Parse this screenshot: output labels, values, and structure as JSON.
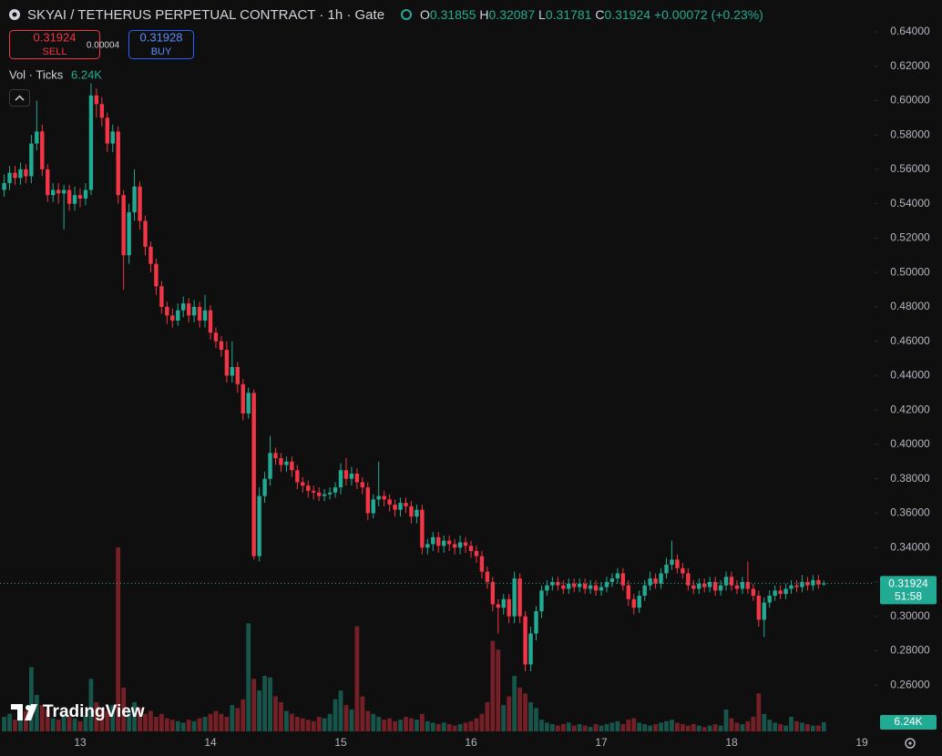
{
  "header": {
    "title": "SKYAI / TETHERUS PERPETUAL CONTRACT · 1h · Gate",
    "ohlc": [
      {
        "label": "O",
        "value": 0.31855
      },
      {
        "label": "H",
        "value": 0.32087
      },
      {
        "label": "L",
        "value": 0.31781
      },
      {
        "label": "C",
        "value": 0.31924
      }
    ],
    "change": "+0.00072 (+0.23%)"
  },
  "trade": {
    "sell_price": 0.31924,
    "sell_label": "SELL",
    "spread": 4e-05,
    "buy_price": 0.31928,
    "buy_label": "BUY"
  },
  "volume_legend": {
    "label": "Vol · Ticks",
    "value": "6.24K"
  },
  "brand": "TradingView",
  "chart_data": {
    "type": "candlestick",
    "up_color": "#22ab94",
    "down_color": "#f23645",
    "categories": [
      null,
      null,
      null,
      null,
      null,
      null,
      null,
      null,
      null,
      null,
      null,
      null,
      null,
      null,
      "13",
      null,
      null,
      null,
      null,
      null,
      null,
      null,
      null,
      null,
      null,
      null,
      null,
      null,
      null,
      null,
      null,
      null,
      null,
      null,
      null,
      null,
      null,
      null,
      "14",
      null,
      null,
      null,
      null,
      null,
      null,
      null,
      null,
      null,
      null,
      null,
      null,
      null,
      null,
      null,
      null,
      null,
      null,
      null,
      null,
      null,
      null,
      null,
      "15",
      null,
      null,
      null,
      null,
      null,
      null,
      null,
      null,
      null,
      null,
      null,
      null,
      null,
      null,
      null,
      null,
      null,
      null,
      null,
      null,
      null,
      null,
      null,
      "16",
      null,
      null,
      null,
      null,
      null,
      null,
      null,
      null,
      null,
      null,
      null,
      null,
      null,
      null,
      null,
      null,
      null,
      null,
      null,
      null,
      null,
      null,
      null,
      "17",
      null,
      null,
      null,
      null,
      null,
      null,
      null,
      null,
      null,
      null,
      null,
      null,
      null,
      null,
      null,
      null,
      null,
      null,
      null,
      null,
      null,
      null,
      null,
      "18",
      null,
      null,
      null,
      null,
      null,
      null,
      null,
      null,
      null,
      null,
      null,
      null,
      null,
      null,
      null,
      null,
      null,
      null,
      null,
      null,
      null,
      null,
      null,
      "19"
    ],
    "open": [
      0.548,
      0.552,
      0.558,
      0.555,
      0.56,
      0.556,
      0.575,
      0.582,
      0.56,
      0.545,
      0.548,
      0.546,
      0.548,
      0.54,
      0.545,
      0.543,
      0.548,
      0.603,
      0.598,
      0.59,
      0.575,
      0.582,
      0.545,
      0.51,
      0.535,
      0.55,
      0.53,
      0.515,
      0.505,
      0.492,
      0.48,
      0.475,
      0.472,
      0.478,
      0.482,
      0.475,
      0.48,
      0.472,
      0.478,
      0.465,
      0.46,
      0.455,
      0.44,
      0.445,
      0.435,
      0.418,
      0.43,
      0.335,
      0.37,
      0.38,
      0.395,
      0.392,
      0.388,
      0.39,
      0.385,
      0.378,
      0.376,
      0.373,
      0.372,
      0.37,
      0.371,
      0.372,
      0.375,
      0.385,
      0.38,
      0.383,
      0.378,
      0.375,
      0.36,
      0.368,
      0.37,
      0.368,
      0.365,
      0.362,
      0.366,
      0.364,
      0.358,
      0.362,
      0.34,
      0.342,
      0.346,
      0.341,
      0.344,
      0.342,
      0.34,
      0.343,
      0.341,
      0.338,
      0.335,
      0.326,
      0.32,
      0.307,
      0.305,
      0.31,
      0.3,
      0.322,
      0.3,
      0.272,
      0.29,
      0.303,
      0.315,
      0.318,
      0.32,
      0.318,
      0.316,
      0.319,
      0.317,
      0.319,
      0.316,
      0.318,
      0.315,
      0.317,
      0.32,
      0.322,
      0.325,
      0.318,
      0.31,
      0.305,
      0.312,
      0.318,
      0.322,
      0.319,
      0.325,
      0.33,
      0.333,
      0.328,
      0.325,
      0.318,
      0.316,
      0.319,
      0.317,
      0.32,
      0.315,
      0.318,
      0.323,
      0.318,
      0.316,
      0.32,
      0.316,
      0.312,
      0.298,
      0.308,
      0.312,
      0.315,
      0.313,
      0.316,
      0.318,
      0.317,
      0.32,
      0.318,
      0.321,
      0.31855,
      null,
      null,
      null,
      null,
      null,
      null,
      null
    ],
    "high": [
      0.557,
      0.562,
      0.562,
      0.564,
      0.563,
      0.58,
      0.6,
      0.586,
      0.563,
      0.552,
      0.552,
      0.551,
      0.551,
      0.55,
      0.549,
      0.552,
      0.61,
      0.607,
      0.602,
      0.593,
      0.586,
      0.585,
      0.548,
      0.54,
      0.56,
      0.553,
      0.533,
      0.518,
      0.508,
      0.495,
      0.483,
      0.479,
      0.482,
      0.486,
      0.485,
      0.484,
      0.483,
      0.487,
      0.481,
      0.468,
      0.463,
      0.46,
      0.46,
      0.448,
      0.438,
      0.433,
      0.432,
      0.375,
      0.384,
      0.405,
      0.398,
      0.395,
      0.393,
      0.393,
      0.388,
      0.381,
      0.379,
      0.376,
      0.375,
      0.374,
      0.375,
      0.378,
      0.389,
      0.392,
      0.387,
      0.386,
      0.381,
      0.378,
      0.371,
      0.39,
      0.373,
      0.371,
      0.368,
      0.369,
      0.369,
      0.367,
      0.365,
      0.365,
      0.345,
      0.349,
      0.349,
      0.347,
      0.347,
      0.345,
      0.347,
      0.346,
      0.344,
      0.341,
      0.338,
      0.329,
      0.323,
      0.31,
      0.313,
      0.313,
      0.326,
      0.325,
      0.303,
      0.294,
      0.306,
      0.318,
      0.321,
      0.323,
      0.323,
      0.321,
      0.322,
      0.322,
      0.322,
      0.322,
      0.321,
      0.321,
      0.32,
      0.323,
      0.325,
      0.328,
      0.328,
      0.321,
      0.313,
      0.315,
      0.321,
      0.326,
      0.325,
      0.328,
      0.334,
      0.344,
      0.336,
      0.331,
      0.328,
      0.321,
      0.322,
      0.322,
      0.323,
      0.323,
      0.321,
      0.326,
      0.326,
      0.321,
      0.323,
      0.332,
      0.319,
      0.315,
      0.311,
      0.315,
      0.318,
      0.318,
      0.319,
      0.321,
      0.321,
      0.324,
      0.323,
      0.324,
      0.324,
      0.32087,
      null,
      null,
      null,
      null,
      null,
      null,
      null
    ],
    "low": [
      0.544,
      0.548,
      0.551,
      0.551,
      0.552,
      0.552,
      0.571,
      0.556,
      0.541,
      0.541,
      0.54,
      0.525,
      0.536,
      0.536,
      0.538,
      0.539,
      0.545,
      0.59,
      0.585,
      0.57,
      0.57,
      0.54,
      0.49,
      0.505,
      0.53,
      0.525,
      0.51,
      0.5,
      0.487,
      0.476,
      0.47,
      0.468,
      0.469,
      0.474,
      0.471,
      0.471,
      0.468,
      0.468,
      0.461,
      0.456,
      0.451,
      0.436,
      0.436,
      0.43,
      0.414,
      0.415,
      0.333,
      0.332,
      0.366,
      0.376,
      0.388,
      0.384,
      0.384,
      0.381,
      0.374,
      0.372,
      0.369,
      0.368,
      0.367,
      0.367,
      0.368,
      0.369,
      0.371,
      0.376,
      0.376,
      0.374,
      0.371,
      0.356,
      0.357,
      0.364,
      0.364,
      0.361,
      0.358,
      0.358,
      0.36,
      0.354,
      0.354,
      0.336,
      0.336,
      0.338,
      0.337,
      0.337,
      0.338,
      0.336,
      0.336,
      0.337,
      0.334,
      0.331,
      0.322,
      0.316,
      0.303,
      0.29,
      0.301,
      0.296,
      0.296,
      0.296,
      0.268,
      0.268,
      0.286,
      0.299,
      0.312,
      0.315,
      0.315,
      0.313,
      0.313,
      0.314,
      0.314,
      0.313,
      0.313,
      0.312,
      0.312,
      0.314,
      0.317,
      0.319,
      0.315,
      0.306,
      0.301,
      0.302,
      0.309,
      0.315,
      0.316,
      0.316,
      0.322,
      0.327,
      0.325,
      0.322,
      0.315,
      0.313,
      0.313,
      0.314,
      0.314,
      0.312,
      0.312,
      0.315,
      0.315,
      0.313,
      0.313,
      0.313,
      0.309,
      0.294,
      0.288,
      0.305,
      0.309,
      0.31,
      0.31,
      0.313,
      0.314,
      0.314,
      0.315,
      0.315,
      0.316,
      0.31781,
      null,
      null,
      null,
      null,
      null,
      null,
      null
    ],
    "close": [
      0.552,
      0.558,
      0.555,
      0.56,
      0.556,
      0.575,
      0.582,
      0.56,
      0.545,
      0.548,
      0.546,
      0.548,
      0.54,
      0.545,
      0.543,
      0.548,
      0.603,
      0.598,
      0.59,
      0.575,
      0.582,
      0.545,
      0.51,
      0.535,
      0.55,
      0.53,
      0.515,
      0.505,
      0.492,
      0.48,
      0.475,
      0.472,
      0.478,
      0.482,
      0.475,
      0.48,
      0.472,
      0.478,
      0.465,
      0.46,
      0.455,
      0.44,
      0.445,
      0.435,
      0.418,
      0.43,
      0.335,
      0.37,
      0.38,
      0.395,
      0.392,
      0.388,
      0.39,
      0.385,
      0.378,
      0.376,
      0.373,
      0.372,
      0.37,
      0.371,
      0.372,
      0.375,
      0.385,
      0.38,
      0.383,
      0.378,
      0.375,
      0.36,
      0.368,
      0.37,
      0.368,
      0.365,
      0.362,
      0.366,
      0.364,
      0.358,
      0.362,
      0.34,
      0.342,
      0.346,
      0.341,
      0.344,
      0.342,
      0.34,
      0.343,
      0.341,
      0.338,
      0.335,
      0.326,
      0.32,
      0.307,
      0.305,
      0.31,
      0.3,
      0.322,
      0.3,
      0.272,
      0.29,
      0.303,
      0.315,
      0.318,
      0.32,
      0.318,
      0.316,
      0.319,
      0.317,
      0.319,
      0.316,
      0.318,
      0.315,
      0.317,
      0.32,
      0.322,
      0.325,
      0.318,
      0.31,
      0.305,
      0.312,
      0.318,
      0.322,
      0.319,
      0.325,
      0.33,
      0.333,
      0.328,
      0.325,
      0.318,
      0.316,
      0.319,
      0.317,
      0.32,
      0.315,
      0.318,
      0.323,
      0.318,
      0.316,
      0.32,
      0.316,
      0.312,
      0.298,
      0.308,
      0.312,
      0.315,
      0.313,
      0.316,
      0.318,
      0.317,
      0.32,
      0.318,
      0.321,
      0.31855,
      0.31924,
      null,
      null,
      null,
      null,
      null,
      null,
      null
    ],
    "volume": [
      10,
      12,
      8,
      9,
      14,
      44,
      25,
      18,
      15,
      9,
      8,
      12,
      10,
      9,
      7,
      11,
      36,
      20,
      16,
      14,
      18,
      126,
      30,
      14,
      20,
      16,
      12,
      14,
      10,
      12,
      9,
      8,
      7,
      6,
      8,
      7,
      9,
      10,
      12,
      14,
      12,
      10,
      18,
      16,
      22,
      74,
      36,
      28,
      38,
      37,
      24,
      20,
      14,
      12,
      10,
      9,
      8,
      7,
      10,
      9,
      12,
      22,
      28,
      18,
      15,
      72,
      24,
      14,
      12,
      10,
      8,
      9,
      7,
      8,
      10,
      9,
      8,
      12,
      7,
      6,
      5,
      6,
      5,
      4,
      5,
      6,
      7,
      9,
      12,
      20,
      62,
      56,
      18,
      24,
      38,
      30,
      26,
      20,
      16,
      8,
      6,
      5,
      4,
      5,
      6,
      4,
      5,
      4,
      3,
      5,
      4,
      5,
      6,
      7,
      5,
      8,
      9,
      6,
      5,
      4,
      5,
      6,
      7,
      8,
      6,
      5,
      4,
      5,
      4,
      3,
      4,
      5,
      4,
      15,
      9,
      6,
      5,
      7,
      10,
      26,
      12,
      8,
      6,
      5,
      4,
      10,
      7,
      6,
      5,
      4,
      4,
      6.24,
      null,
      null,
      null,
      null,
      null,
      null,
      null
    ],
    "volume_label": "6.24K",
    "ylim": [
      0.232,
      0.6585
    ],
    "yticks": [
      {
        "value": 0.26,
        "label": "0.26000"
      },
      {
        "value": 0.28,
        "label": "0.28000"
      },
      {
        "value": 0.3,
        "label": "0.30000"
      },
      {
        "value": 0.32,
        "label": "0.32000"
      },
      {
        "value": 0.34,
        "label": "0.34000"
      },
      {
        "value": 0.36,
        "label": "0.36000"
      },
      {
        "value": 0.38,
        "label": "0.38000"
      },
      {
        "value": 0.4,
        "label": "0.40000"
      },
      {
        "value": 0.42,
        "label": "0.42000"
      },
      {
        "value": 0.44,
        "label": "0.44000"
      },
      {
        "value": 0.46,
        "label": "0.46000"
      },
      {
        "value": 0.48,
        "label": "0.48000"
      },
      {
        "value": 0.5,
        "label": "0.50000"
      },
      {
        "value": 0.52,
        "label": "0.52000"
      },
      {
        "value": 0.54,
        "label": "0.54000"
      },
      {
        "value": 0.56,
        "label": "0.56000"
      },
      {
        "value": 0.58,
        "label": "0.58000"
      },
      {
        "value": 0.6,
        "label": "0.60000"
      },
      {
        "value": 0.62,
        "label": "0.62000"
      },
      {
        "value": 0.64,
        "label": "0.64000"
      }
    ],
    "last_price": 0.31924,
    "countdown": "51:58"
  }
}
